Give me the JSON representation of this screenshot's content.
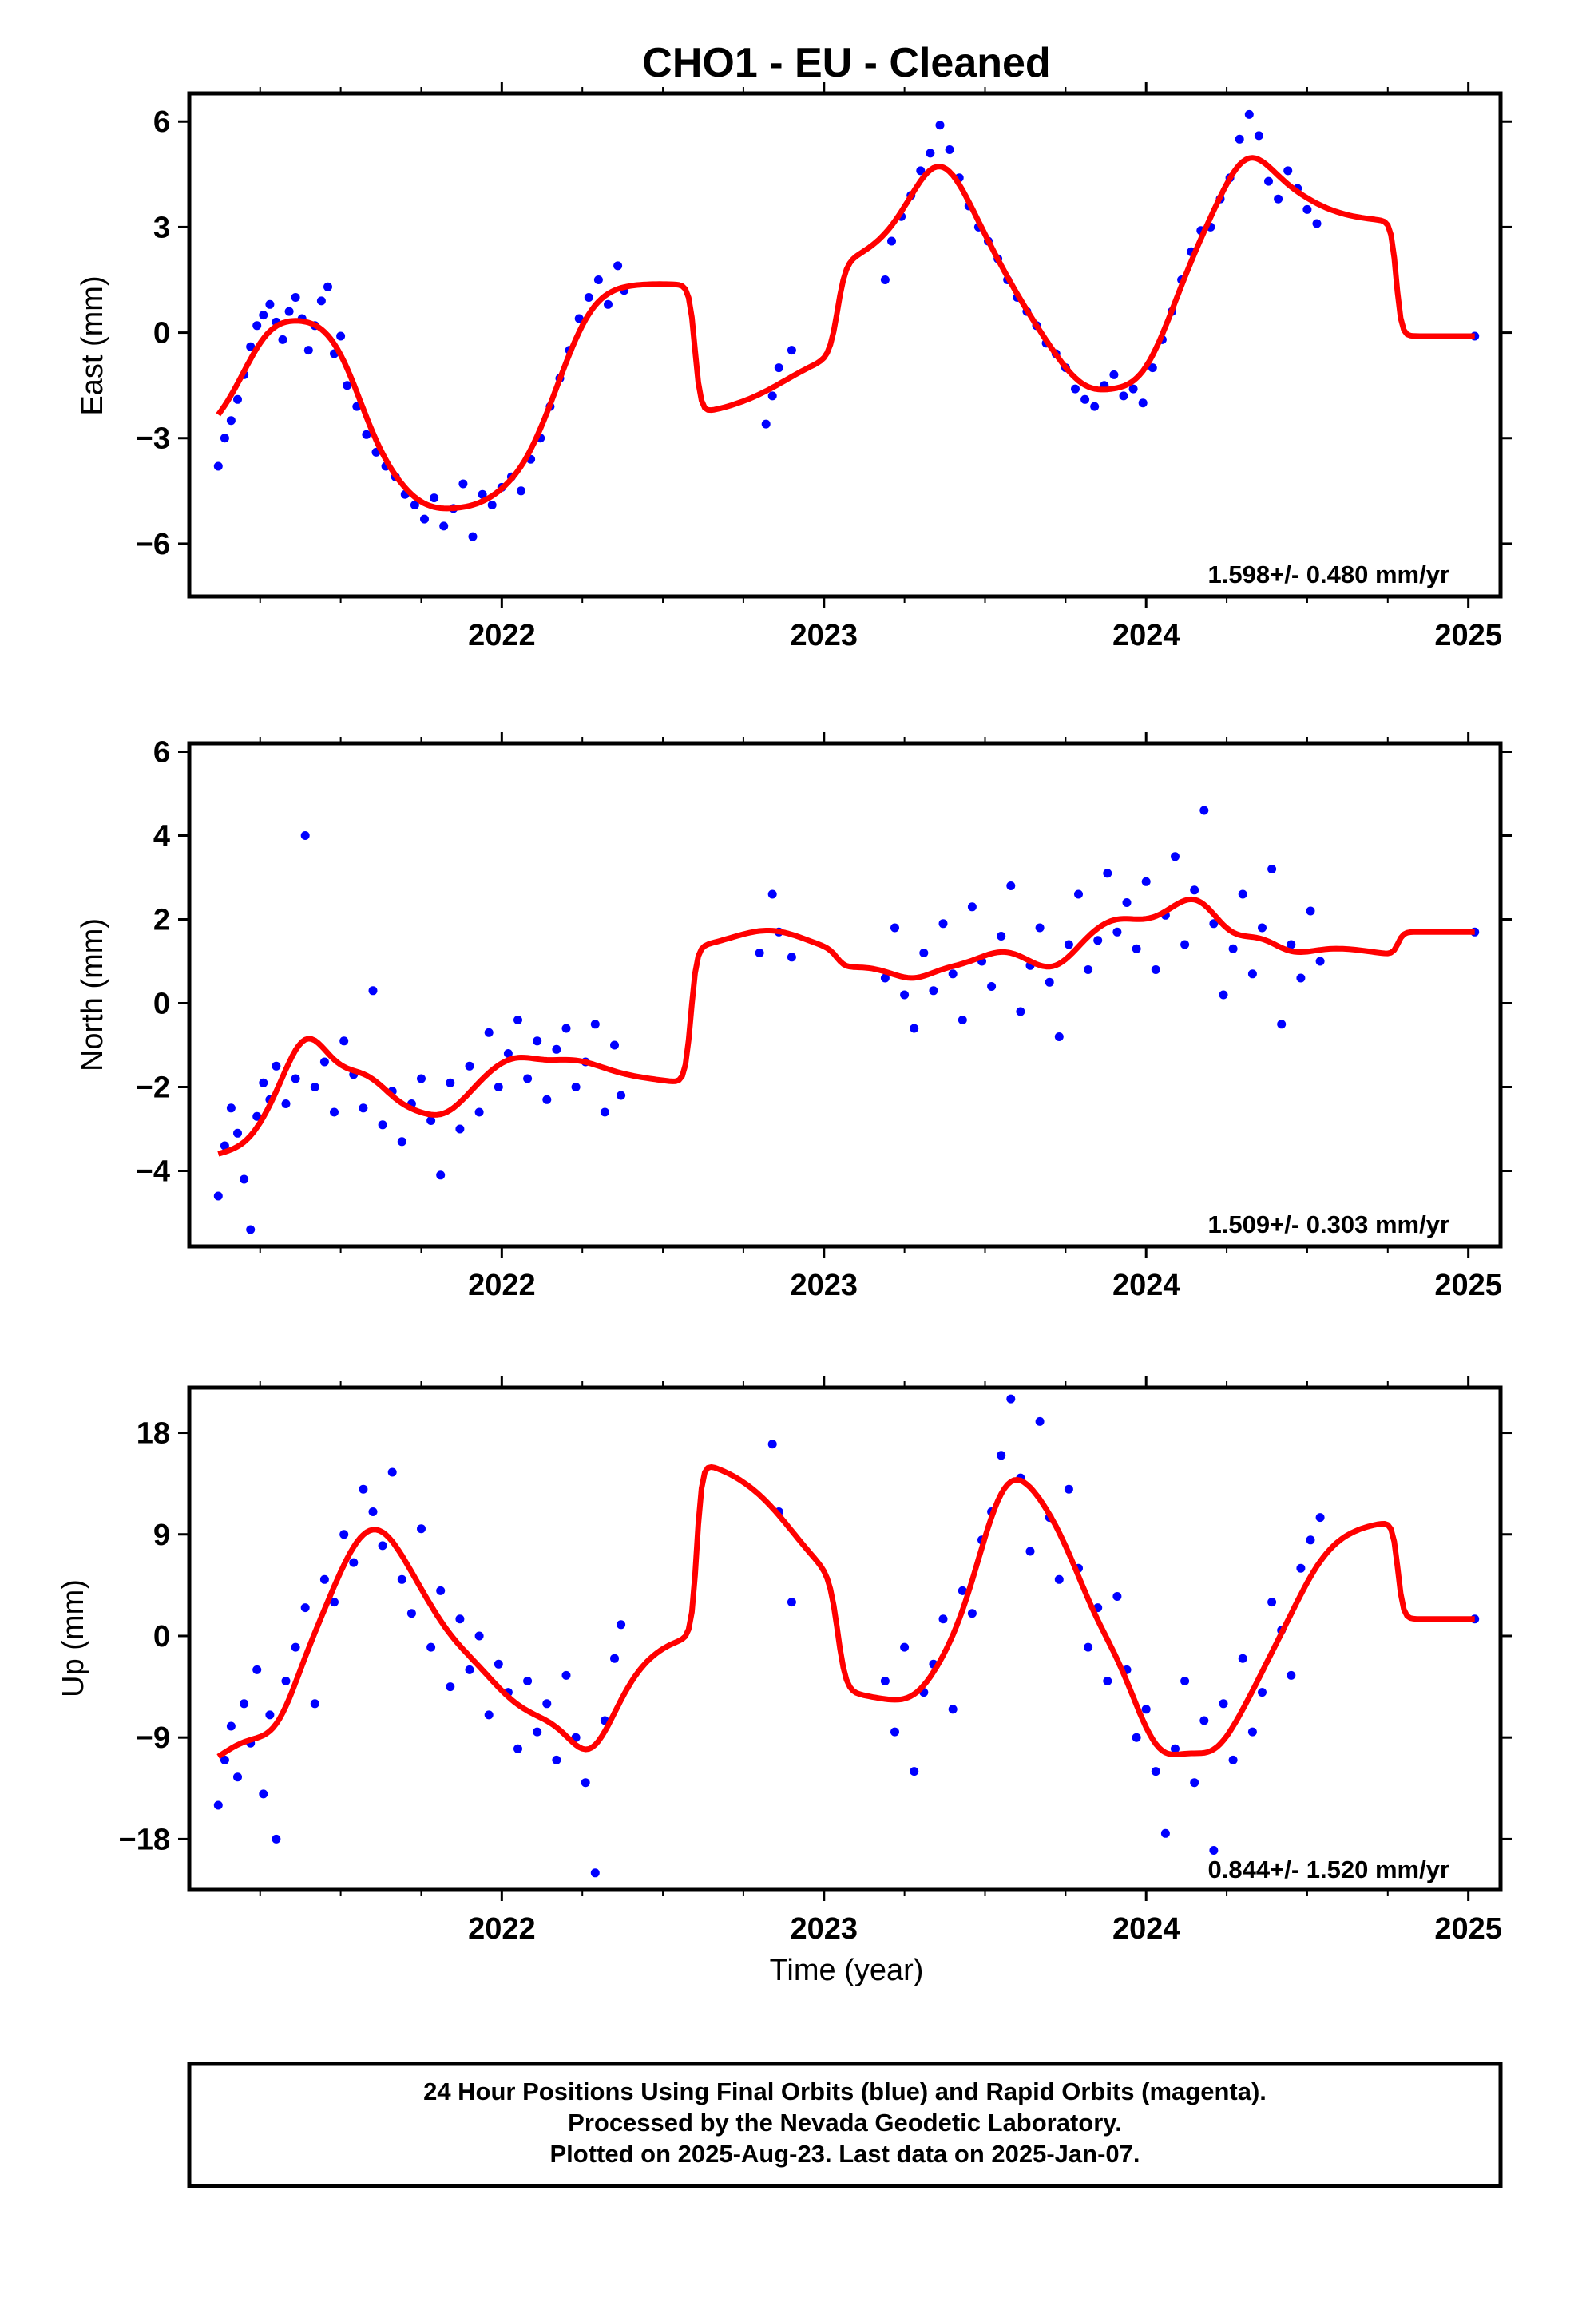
{
  "title": "CHO1  - EU - Cleaned",
  "xlabel": "Time (year)",
  "footer": {
    "line1": "24 Hour Positions Using Final Orbits (blue) and Rapid Orbits (magenta).",
    "line2": "Processed by the Nevada Geodetic Laboratory.",
    "line3": "Plotted on 2025-Aug-23. Last data on 2025-Jan-07."
  },
  "colors": {
    "points": "#0000ff",
    "fit": "#ff0000",
    "frame": "#000000"
  },
  "chart_data": [
    {
      "type": "scatter",
      "ylabel": "East (mm)",
      "rate": "1.598+/- 0.480 mm/yr",
      "xlim": [
        2021.03,
        2025.1
      ],
      "ylim": [
        -7.5,
        6.8
      ],
      "x_ticks": [
        2022,
        2023,
        2024,
        2025
      ],
      "y_ticks": [
        -6,
        -3,
        0,
        3,
        6
      ],
      "y_tick_labels": [
        "−6",
        "−3",
        "0",
        "3",
        "6"
      ],
      "grid": false,
      "series": [
        {
          "style": "points",
          "x": [
            2021.12,
            2021.14,
            2021.16,
            2021.18,
            2021.2,
            2021.22,
            2021.24,
            2021.26,
            2021.28,
            2021.3,
            2021.32,
            2021.34,
            2021.36,
            2021.38,
            2021.4,
            2021.42,
            2021.44,
            2021.46,
            2021.48,
            2021.5,
            2021.52,
            2021.55,
            2021.58,
            2021.61,
            2021.64,
            2021.67,
            2021.7,
            2021.73,
            2021.76,
            2021.79,
            2021.82,
            2021.85,
            2021.88,
            2021.91,
            2021.94,
            2021.97,
            2022.0,
            2022.03,
            2022.06,
            2022.09,
            2022.12,
            2022.15,
            2022.18,
            2022.21,
            2022.24,
            2022.27,
            2022.3,
            2022.33,
            2022.36,
            2022.38,
            2022.82,
            2022.84,
            2022.86,
            2022.9,
            2023.19,
            2023.21,
            2023.24,
            2023.27,
            2023.3,
            2023.33,
            2023.36,
            2023.39,
            2023.42,
            2023.45,
            2023.48,
            2023.51,
            2023.54,
            2023.57,
            2023.6,
            2023.63,
            2023.66,
            2023.69,
            2023.72,
            2023.75,
            2023.78,
            2023.81,
            2023.84,
            2023.87,
            2023.9,
            2023.93,
            2023.96,
            2023.99,
            2024.02,
            2024.05,
            2024.08,
            2024.11,
            2024.14,
            2024.17,
            2024.2,
            2024.23,
            2024.26,
            2024.29,
            2024.32,
            2024.35,
            2024.38,
            2024.41,
            2024.44,
            2024.47,
            2024.5,
            2024.53,
            2025.02
          ],
          "y": [
            -3.8,
            -3.0,
            -2.5,
            -1.9,
            -1.2,
            -0.4,
            0.2,
            0.5,
            0.8,
            0.3,
            -0.2,
            0.6,
            1.0,
            0.4,
            -0.5,
            0.2,
            0.9,
            1.3,
            -0.6,
            -0.1,
            -1.5,
            -2.1,
            -2.9,
            -3.4,
            -3.8,
            -4.1,
            -4.6,
            -4.9,
            -5.3,
            -4.7,
            -5.5,
            -5.0,
            -4.3,
            -5.8,
            -4.6,
            -4.9,
            -4.4,
            -4.1,
            -4.5,
            -3.6,
            -3.0,
            -2.1,
            -1.3,
            -0.5,
            0.4,
            1.0,
            1.5,
            0.8,
            1.9,
            1.2,
            -2.6,
            -1.8,
            -1.0,
            -0.5,
            1.5,
            2.6,
            3.3,
            3.9,
            4.6,
            5.1,
            5.9,
            5.2,
            4.4,
            3.6,
            3.0,
            2.6,
            2.1,
            1.5,
            1.0,
            0.6,
            0.2,
            -0.3,
            -0.6,
            -1.0,
            -1.6,
            -1.9,
            -2.1,
            -1.5,
            -1.2,
            -1.8,
            -1.6,
            -2.0,
            -1.0,
            -0.2,
            0.6,
            1.5,
            2.3,
            2.9,
            3.0,
            3.8,
            4.4,
            5.5,
            6.2,
            5.6,
            4.3,
            3.8,
            4.6,
            4.1,
            3.5,
            3.1,
            -0.1
          ]
        },
        {
          "style": "fit",
          "name": ""
        }
      ]
    },
    {
      "type": "scatter",
      "ylabel": "North (mm)",
      "rate": "1.509+/- 0.303 mm/yr",
      "xlim": [
        2021.03,
        2025.1
      ],
      "ylim": [
        -5.8,
        6.2
      ],
      "x_ticks": [
        2022,
        2023,
        2024,
        2025
      ],
      "y_ticks": [
        -4,
        -2,
        0,
        2,
        4,
        6
      ],
      "y_tick_labels": [
        "−4",
        "−2",
        "0",
        "2",
        "4",
        "6"
      ],
      "grid": false,
      "series": [
        {
          "style": "points",
          "x": [
            2021.12,
            2021.14,
            2021.16,
            2021.18,
            2021.2,
            2021.22,
            2021.24,
            2021.26,
            2021.28,
            2021.3,
            2021.33,
            2021.36,
            2021.39,
            2021.42,
            2021.45,
            2021.48,
            2021.51,
            2021.54,
            2021.57,
            2021.6,
            2021.63,
            2021.66,
            2021.69,
            2021.72,
            2021.75,
            2021.78,
            2021.81,
            2021.84,
            2021.87,
            2021.9,
            2021.93,
            2021.96,
            2021.99,
            2022.02,
            2022.05,
            2022.08,
            2022.11,
            2022.14,
            2022.17,
            2022.2,
            2022.23,
            2022.26,
            2022.29,
            2022.32,
            2022.35,
            2022.37,
            2022.8,
            2022.84,
            2022.86,
            2022.9,
            2023.19,
            2023.22,
            2023.25,
            2023.28,
            2023.31,
            2023.34,
            2023.37,
            2023.4,
            2023.43,
            2023.46,
            2023.49,
            2023.52,
            2023.55,
            2023.58,
            2023.61,
            2023.64,
            2023.67,
            2023.7,
            2023.73,
            2023.76,
            2023.79,
            2023.82,
            2023.85,
            2023.88,
            2023.91,
            2023.94,
            2023.97,
            2024.0,
            2024.03,
            2024.06,
            2024.09,
            2024.12,
            2024.15,
            2024.18,
            2024.21,
            2024.24,
            2024.27,
            2024.3,
            2024.33,
            2024.36,
            2024.39,
            2024.42,
            2024.45,
            2024.48,
            2024.51,
            2024.54,
            2025.02
          ],
          "y": [
            -4.6,
            -3.4,
            -2.5,
            -3.1,
            -4.2,
            -5.4,
            -2.7,
            -1.9,
            -2.3,
            -1.5,
            -2.4,
            -1.8,
            4.0,
            -2.0,
            -1.4,
            -2.6,
            -0.9,
            -1.7,
            -2.5,
            0.3,
            -2.9,
            -2.1,
            -3.3,
            -2.4,
            -1.8,
            -2.8,
            -4.1,
            -1.9,
            -3.0,
            -1.5,
            -2.6,
            -0.7,
            -2.0,
            -1.2,
            -0.4,
            -1.8,
            -0.9,
            -2.3,
            -1.1,
            -0.6,
            -2.0,
            -1.4,
            -0.5,
            -2.6,
            -1.0,
            -2.2,
            1.2,
            2.6,
            1.7,
            1.1,
            0.6,
            1.8,
            0.2,
            -0.6,
            1.2,
            0.3,
            1.9,
            0.7,
            -0.4,
            2.3,
            1.0,
            0.4,
            1.6,
            2.8,
            -0.2,
            0.9,
            1.8,
            0.5,
            -0.8,
            1.4,
            2.6,
            0.8,
            1.5,
            3.1,
            1.7,
            2.4,
            1.3,
            2.9,
            0.8,
            2.1,
            3.5,
            1.4,
            2.7,
            4.6,
            1.9,
            0.2,
            1.3,
            2.6,
            0.7,
            1.8,
            3.2,
            -0.5,
            1.4,
            0.6,
            2.2,
            1.0,
            1.7
          ]
        },
        {
          "style": "fit",
          "name": ""
        }
      ]
    },
    {
      "type": "scatter",
      "ylabel": "Up (mm)",
      "rate": "0.844+/- 1.520 mm/yr",
      "xlim": [
        2021.03,
        2025.1
      ],
      "ylim": [
        -22.5,
        22
      ],
      "x_ticks": [
        2022,
        2023,
        2024,
        2025
      ],
      "y_ticks": [
        -18,
        -9,
        0,
        9,
        18
      ],
      "y_tick_labels": [
        "−18",
        "−9",
        "0",
        "9",
        "18"
      ],
      "grid": false,
      "series": [
        {
          "style": "points",
          "x": [
            2021.12,
            2021.14,
            2021.16,
            2021.18,
            2021.2,
            2021.22,
            2021.24,
            2021.26,
            2021.28,
            2021.3,
            2021.33,
            2021.36,
            2021.39,
            2021.42,
            2021.45,
            2021.48,
            2021.51,
            2021.54,
            2021.57,
            2021.6,
            2021.63,
            2021.66,
            2021.69,
            2021.72,
            2021.75,
            2021.78,
            2021.81,
            2021.84,
            2021.87,
            2021.9,
            2021.93,
            2021.96,
            2021.99,
            2022.02,
            2022.05,
            2022.08,
            2022.11,
            2022.14,
            2022.17,
            2022.2,
            2022.23,
            2022.26,
            2022.29,
            2022.32,
            2022.35,
            2022.37,
            2022.84,
            2022.86,
            2022.9,
            2023.19,
            2023.22,
            2023.25,
            2023.28,
            2023.31,
            2023.34,
            2023.37,
            2023.4,
            2023.43,
            2023.46,
            2023.49,
            2023.52,
            2023.55,
            2023.58,
            2023.61,
            2023.64,
            2023.67,
            2023.7,
            2023.73,
            2023.76,
            2023.79,
            2023.82,
            2023.85,
            2023.88,
            2023.91,
            2023.94,
            2023.97,
            2024.0,
            2024.03,
            2024.06,
            2024.09,
            2024.12,
            2024.15,
            2024.18,
            2024.21,
            2024.24,
            2024.27,
            2024.3,
            2024.33,
            2024.36,
            2024.39,
            2024.42,
            2024.45,
            2024.48,
            2024.51,
            2024.54,
            2025.02
          ],
          "y": [
            -15.0,
            -11.0,
            -8.0,
            -12.5,
            -6.0,
            -9.5,
            -3.0,
            -14.0,
            -7.0,
            -18.0,
            -4.0,
            -1.0,
            2.5,
            -6.0,
            5.0,
            3.0,
            9.0,
            6.5,
            13.0,
            11.0,
            8.0,
            14.5,
            5.0,
            2.0,
            9.5,
            -1.0,
            4.0,
            -4.5,
            1.5,
            -3.0,
            0.0,
            -7.0,
            -2.5,
            -5.0,
            -10.0,
            -4.0,
            -8.5,
            -6.0,
            -11.0,
            -3.5,
            -9.0,
            -13.0,
            -21.0,
            -7.5,
            -2.0,
            1.0,
            17.0,
            11.0,
            3.0,
            -4.0,
            -8.5,
            -1.0,
            -12.0,
            -5.0,
            -2.5,
            1.5,
            -6.5,
            4.0,
            2.0,
            8.5,
            11.0,
            16.0,
            21.0,
            14.0,
            7.5,
            19.0,
            10.5,
            5.0,
            13.0,
            6.0,
            -1.0,
            2.5,
            -4.0,
            3.5,
            -3.0,
            -9.0,
            -6.5,
            -12.0,
            -17.5,
            -10.0,
            -4.0,
            -13.0,
            -7.5,
            -19.0,
            -6.0,
            -11.0,
            -2.0,
            -8.5,
            -5.0,
            3.0,
            0.5,
            -3.5,
            6.0,
            8.5,
            10.5,
            1.5
          ]
        },
        {
          "style": "fit",
          "name": ""
        }
      ]
    }
  ]
}
